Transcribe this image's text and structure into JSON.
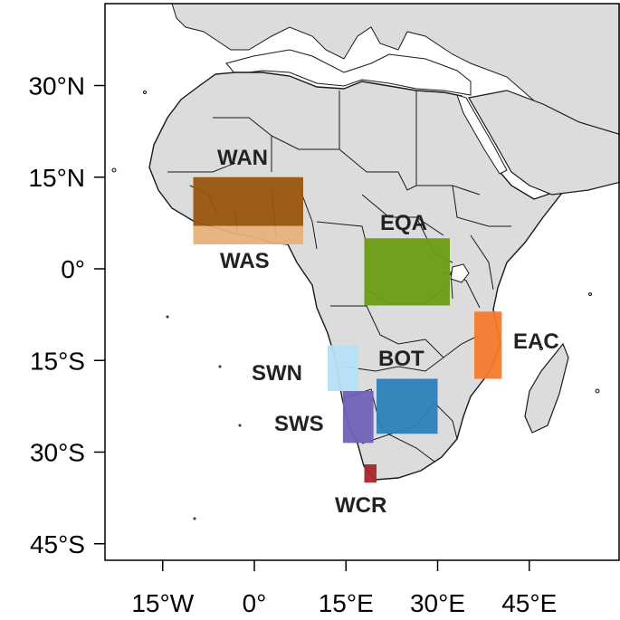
{
  "map": {
    "lat_ticks": [
      {
        "value": 30,
        "label": "30°N"
      },
      {
        "value": 15,
        "label": "15°N"
      },
      {
        "value": 0,
        "label": "0°"
      },
      {
        "value": -15,
        "label": "15°S"
      },
      {
        "value": -30,
        "label": "30°S"
      },
      {
        "value": -45,
        "label": "45°S"
      }
    ],
    "lon_ticks": [
      {
        "value": -15,
        "label": "15°W"
      },
      {
        "value": 0,
        "label": "0°"
      },
      {
        "value": 15,
        "label": "15°E"
      },
      {
        "value": 30,
        "label": "30°E"
      },
      {
        "value": 45,
        "label": "45°E"
      }
    ],
    "extent": {
      "lon_min": -24.5,
      "lon_max": 60.5,
      "lat_min": -49,
      "lat_max": 44
    },
    "colors": {
      "land": "#dcdcdc",
      "ocean": "#ffffff",
      "border": "#1a1a1a",
      "frame": "#000000"
    },
    "regions": [
      {
        "id": "WAN",
        "label": "WAN",
        "color": "#9a5410",
        "lon": [
          -10,
          8
        ],
        "lat": [
          7,
          15
        ]
      },
      {
        "id": "WAS",
        "label": "WAS",
        "color": "#e7b07a",
        "lon": [
          -10,
          8
        ],
        "lat": [
          4,
          7
        ]
      },
      {
        "id": "EQA",
        "label": "EQA",
        "color": "#6b9b12",
        "lon": [
          18,
          32
        ],
        "lat": [
          -6,
          5
        ]
      },
      {
        "id": "EAC",
        "label": "EAC",
        "color": "#f47a2d",
        "lon": [
          36,
          40.5
        ],
        "lat": [
          -18,
          -7
        ]
      },
      {
        "id": "BOT",
        "label": "BOT",
        "color": "#2c80b9",
        "lon": [
          20,
          30
        ],
        "lat": [
          -27,
          -18
        ]
      },
      {
        "id": "SWN",
        "label": "SWN",
        "color": "#b5dff8",
        "lon": [
          12,
          17
        ],
        "lat": [
          -20,
          -12.5
        ]
      },
      {
        "id": "SWS",
        "label": "SWS",
        "color": "#7161b6",
        "lon": [
          14.5,
          19.5
        ],
        "lat": [
          -28.5,
          -20
        ]
      },
      {
        "id": "WCR",
        "label": "WCR",
        "color": "#a7262a",
        "lon": [
          18,
          20
        ],
        "lat": [
          -35,
          -32
        ]
      }
    ]
  }
}
